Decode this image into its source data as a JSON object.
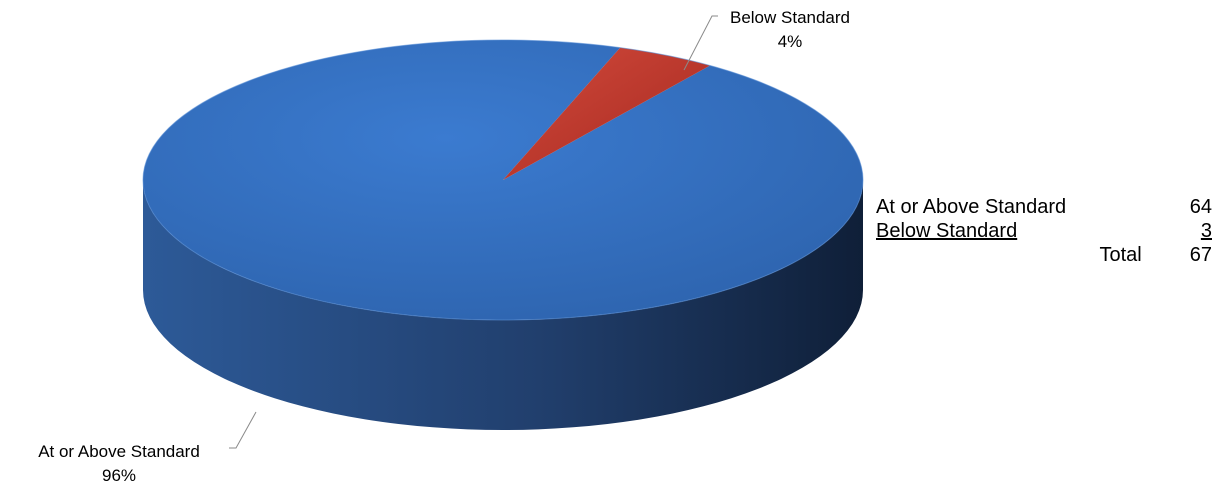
{
  "chart_data": {
    "type": "pie",
    "style": "3d",
    "categories": [
      "At or Above Standard",
      "Below Standard"
    ],
    "values": [
      64,
      3
    ],
    "percent_labels": [
      "96%",
      "4%"
    ],
    "colors": [
      "#3873c4",
      "#c0392b"
    ],
    "legend": "none",
    "data_labels": "outside with leader lines"
  },
  "summary": {
    "rows": [
      {
        "label": "At or Above Standard",
        "value": "64"
      },
      {
        "label": "Below Standard",
        "value": "3"
      }
    ],
    "total_label": "Total",
    "total_value": "67"
  }
}
